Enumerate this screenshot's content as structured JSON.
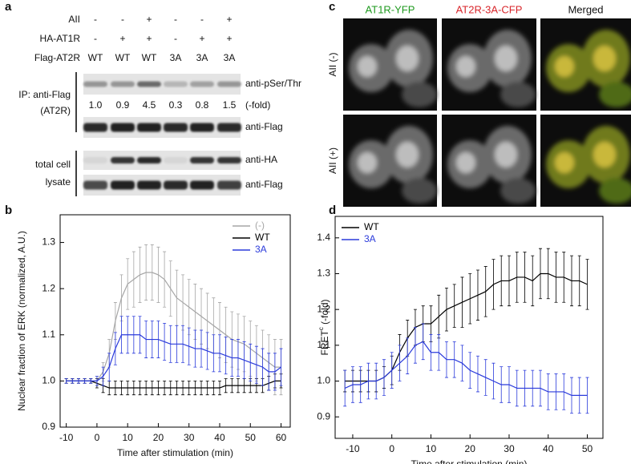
{
  "panel_labels": [
    "a",
    "b",
    "c",
    "d"
  ],
  "blot": {
    "rows": [
      {
        "label": "AII",
        "cells": [
          "-",
          "-",
          "+",
          "-",
          "-",
          "+"
        ]
      },
      {
        "label": "HA-AT1R",
        "cells": [
          "-",
          "+",
          "+",
          "-",
          "+",
          "+"
        ]
      },
      {
        "label": "Flag-AT2R",
        "cells": [
          "WT",
          "WT",
          "WT",
          "3A",
          "3A",
          "3A"
        ]
      }
    ],
    "ip_label": [
      "IP: anti-Flag",
      "(AT2R)"
    ],
    "lysate_label": [
      "total cell",
      "lysate"
    ],
    "fold_change": [
      "1.0",
      "0.9",
      "4.5",
      "0.3",
      "0.8",
      "1.5"
    ],
    "fold_unit": "(-fold)",
    "antibodies": [
      "anti-pSer/Thr",
      "anti-Flag",
      "anti-HA",
      "anti-Flag"
    ]
  },
  "microscopy": {
    "columns": [
      "AT1R-YFP",
      "AT2R-3A-CFP",
      "Merged"
    ],
    "rows": [
      "AII (-)",
      "AII (+)"
    ]
  },
  "chart_data": [
    {
      "type": "line",
      "xlabel": "Time after stimulation (min)",
      "ylabel": "Nuclear fraction of ERK (normalized, A.U.)",
      "x": [
        -10,
        -8,
        -6,
        -4,
        -2,
        0,
        2,
        4,
        6,
        8,
        10,
        12,
        14,
        16,
        18,
        20,
        22,
        24,
        26,
        28,
        30,
        32,
        34,
        36,
        38,
        40,
        42,
        44,
        46,
        48,
        50,
        52,
        54,
        56,
        58,
        60
      ],
      "series": [
        {
          "name": "(-)",
          "color": "#a6a6a6",
          "values": [
            1.0,
            1.0,
            1.0,
            1.0,
            1.0,
            1.0,
            1.02,
            1.06,
            1.13,
            1.18,
            1.21,
            1.22,
            1.23,
            1.235,
            1.235,
            1.23,
            1.22,
            1.2,
            1.18,
            1.17,
            1.16,
            1.15,
            1.14,
            1.13,
            1.12,
            1.11,
            1.1,
            1.09,
            1.085,
            1.08,
            1.07,
            1.06,
            1.05,
            1.04,
            1.03,
            1.03
          ],
          "errors": [
            0.005,
            0.005,
            0.005,
            0.005,
            0.005,
            0.01,
            0.02,
            0.03,
            0.04,
            0.05,
            0.055,
            0.06,
            0.06,
            0.06,
            0.06,
            0.06,
            0.06,
            0.06,
            0.06,
            0.06,
            0.06,
            0.06,
            0.06,
            0.06,
            0.06,
            0.06,
            0.06,
            0.06,
            0.06,
            0.06,
            0.06,
            0.06,
            0.06,
            0.06,
            0.06,
            0.06
          ]
        },
        {
          "name": "WT",
          "color": "#000000",
          "values": [
            1.0,
            1.0,
            1.0,
            1.0,
            1.0,
            0.995,
            0.99,
            0.985,
            0.985,
            0.985,
            0.985,
            0.985,
            0.985,
            0.985,
            0.985,
            0.985,
            0.985,
            0.985,
            0.985,
            0.985,
            0.985,
            0.985,
            0.985,
            0.985,
            0.985,
            0.985,
            0.99,
            0.99,
            0.99,
            0.99,
            0.99,
            0.99,
            0.99,
            0.995,
            1.0,
            1.0
          ],
          "errors": [
            0.005,
            0.005,
            0.005,
            0.005,
            0.005,
            0.01,
            0.015,
            0.015,
            0.015,
            0.015,
            0.015,
            0.015,
            0.015,
            0.015,
            0.015,
            0.015,
            0.015,
            0.015,
            0.015,
            0.015,
            0.015,
            0.015,
            0.015,
            0.015,
            0.015,
            0.015,
            0.015,
            0.015,
            0.015,
            0.015,
            0.015,
            0.015,
            0.015,
            0.015,
            0.015,
            0.015
          ]
        },
        {
          "name": "3A",
          "color": "#2b3bdb",
          "values": [
            1.0,
            1.0,
            1.0,
            1.0,
            1.0,
            1.0,
            1.01,
            1.03,
            1.07,
            1.1,
            1.1,
            1.1,
            1.1,
            1.09,
            1.09,
            1.09,
            1.085,
            1.08,
            1.08,
            1.08,
            1.075,
            1.07,
            1.07,
            1.065,
            1.06,
            1.06,
            1.055,
            1.05,
            1.05,
            1.045,
            1.04,
            1.035,
            1.03,
            1.02,
            1.02,
            1.03
          ],
          "errors": [
            0.005,
            0.005,
            0.005,
            0.005,
            0.005,
            0.01,
            0.02,
            0.03,
            0.035,
            0.04,
            0.04,
            0.04,
            0.04,
            0.04,
            0.04,
            0.04,
            0.04,
            0.04,
            0.04,
            0.04,
            0.04,
            0.04,
            0.04,
            0.04,
            0.04,
            0.04,
            0.04,
            0.04,
            0.04,
            0.04,
            0.04,
            0.04,
            0.04,
            0.04,
            0.04,
            0.04
          ]
        }
      ],
      "xlim": [
        -12,
        63
      ],
      "xticks": [
        -10,
        0,
        10,
        20,
        30,
        40,
        50,
        60
      ],
      "ylim": [
        0.9,
        1.36
      ],
      "yticks": [
        0.9,
        {
          "value": 1,
          "label": "1.0"
        },
        1.1,
        1.2,
        1.3
      ],
      "legend": "upper right",
      "grid": false
    },
    {
      "type": "line",
      "xlabel": "Time after stimulation (min)",
      "ylabel": "FRET",
      "ylabel_sup": "c",
      "ylabel_suffix": " (-fold)",
      "x": [
        -12,
        -10,
        -8,
        -6,
        -4,
        -2,
        0,
        2,
        4,
        6,
        8,
        10,
        12,
        14,
        16,
        18,
        20,
        22,
        24,
        26,
        28,
        30,
        32,
        34,
        36,
        38,
        40,
        42,
        44,
        46,
        48,
        50
      ],
      "series": [
        {
          "name": "WT",
          "color": "#000000",
          "values": [
            1.0,
            1.0,
            1.0,
            1.0,
            1.0,
            1.01,
            1.03,
            1.08,
            1.12,
            1.15,
            1.16,
            1.16,
            1.18,
            1.2,
            1.21,
            1.22,
            1.23,
            1.24,
            1.25,
            1.27,
            1.28,
            1.28,
            1.29,
            1.29,
            1.28,
            1.3,
            1.3,
            1.29,
            1.29,
            1.28,
            1.28,
            1.27
          ],
          "errors": [
            0.03,
            0.03,
            0.03,
            0.03,
            0.03,
            0.03,
            0.04,
            0.05,
            0.05,
            0.05,
            0.05,
            0.05,
            0.06,
            0.06,
            0.06,
            0.07,
            0.07,
            0.07,
            0.07,
            0.07,
            0.07,
            0.07,
            0.07,
            0.07,
            0.07,
            0.07,
            0.07,
            0.07,
            0.07,
            0.07,
            0.07,
            0.07
          ]
        },
        {
          "name": "3A",
          "color": "#2b3bdb",
          "values": [
            0.98,
            0.99,
            0.99,
            1.0,
            1.0,
            1.01,
            1.03,
            1.05,
            1.07,
            1.1,
            1.11,
            1.08,
            1.08,
            1.06,
            1.06,
            1.05,
            1.03,
            1.02,
            1.01,
            1.0,
            0.99,
            0.99,
            0.98,
            0.98,
            0.98,
            0.98,
            0.97,
            0.97,
            0.97,
            0.96,
            0.96,
            0.96
          ],
          "errors": [
            0.05,
            0.05,
            0.05,
            0.05,
            0.05,
            0.05,
            0.05,
            0.05,
            0.05,
            0.05,
            0.05,
            0.05,
            0.05,
            0.05,
            0.05,
            0.05,
            0.05,
            0.05,
            0.05,
            0.05,
            0.05,
            0.05,
            0.05,
            0.05,
            0.05,
            0.05,
            0.05,
            0.05,
            0.05,
            0.05,
            0.05,
            0.05
          ]
        }
      ],
      "xlim": [
        -14.5,
        54
      ],
      "xticks": [
        -10,
        0,
        10,
        20,
        30,
        40,
        50
      ],
      "ylim": [
        0.84,
        1.46
      ],
      "yticks": [
        0.9,
        {
          "value": 1,
          "label": "1.0"
        },
        1.1,
        1.2,
        1.3,
        1.4
      ],
      "legend": "upper left",
      "grid": false
    }
  ]
}
